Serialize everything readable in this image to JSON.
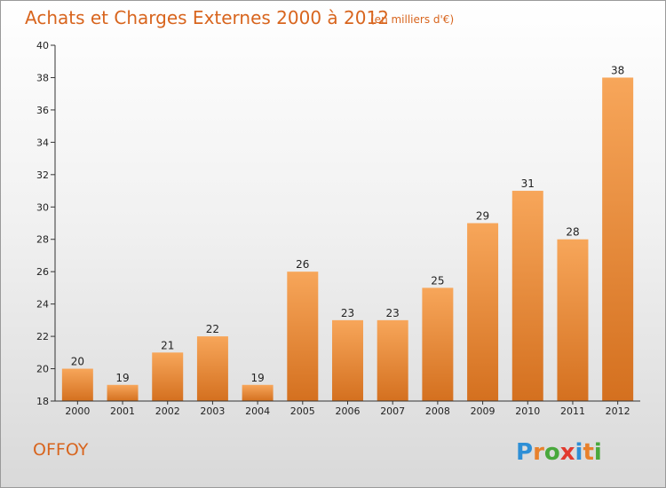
{
  "chart_data": {
    "type": "bar",
    "title": "Achats et Charges Externes 2000 à 2012",
    "subtitle": "(en milliers d'€)",
    "categories": [
      "2000",
      "2001",
      "2002",
      "2003",
      "2004",
      "2005",
      "2006",
      "2007",
      "2008",
      "2009",
      "2010",
      "2011",
      "2012"
    ],
    "values": [
      20,
      19,
      21,
      22,
      19,
      26,
      23,
      23,
      25,
      29,
      31,
      28,
      38
    ],
    "ylim": [
      18,
      40
    ],
    "yticks": [
      18,
      20,
      22,
      24,
      26,
      28,
      30,
      32,
      34,
      36,
      38,
      40
    ],
    "xlabel": "",
    "ylabel": "",
    "grid": false,
    "legend": "none",
    "bar_color_top": "#f7a65a",
    "bar_color_bottom": "#d4701f"
  },
  "footer": {
    "commune": "OFFOY",
    "logo": "Proxiti",
    "logo_colors": [
      "#2e8fd6",
      "#e8812c",
      "#49a83c",
      "#e23a2e",
      "#2e8fd6",
      "#e8812c",
      "#49a83c"
    ]
  }
}
